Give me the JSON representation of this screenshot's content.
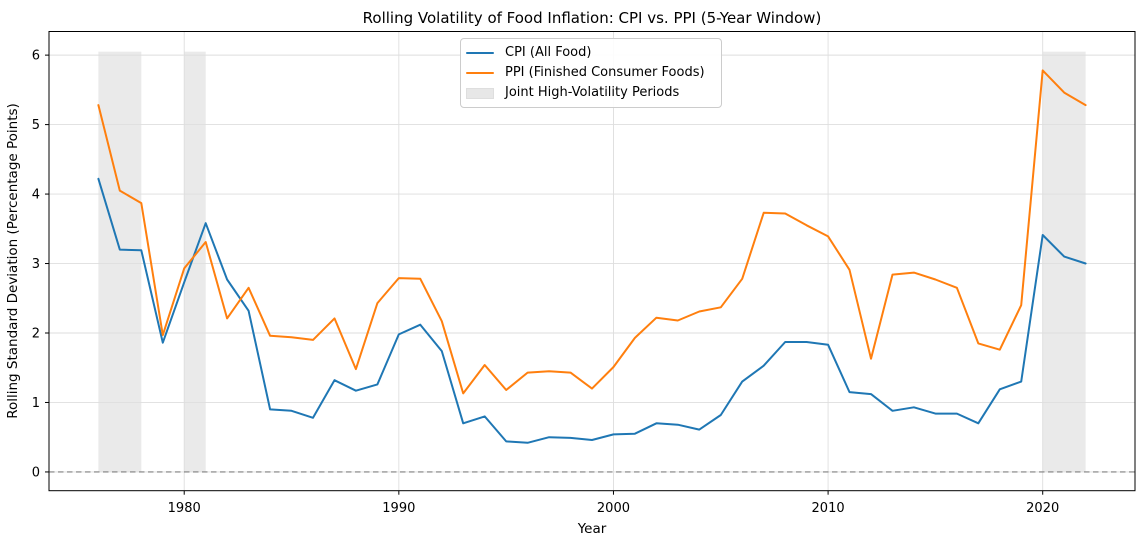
{
  "figure": {
    "title": "Rolling Volatility of Food Inflation: CPI vs. PPI (5-Year Window)",
    "xlabel": "Year",
    "ylabel": "Rolling Standard Deviation (Percentage Points)"
  },
  "legend": {
    "position": "upper center-left",
    "items": [
      {
        "label": "CPI (All Food)",
        "type": "line",
        "color": "#1f77b4"
      },
      {
        "label": "PPI (Finished Consumer Foods)",
        "type": "line",
        "color": "#ff7f0e"
      },
      {
        "label": "Joint High-Volatility Periods",
        "type": "patch",
        "color": "#e0e0e0"
      }
    ]
  },
  "chart_data": {
    "type": "line",
    "title": "Rolling Volatility of Food Inflation: CPI vs. PPI (5-Year Window)",
    "xlabel": "Year",
    "ylabel": "Rolling Standard Deviation (Percentage Points)",
    "grid": true,
    "xlim": [
      1973.7,
      2024.3
    ],
    "ylim": [
      -0.27,
      6.34
    ],
    "xticks": [
      1980,
      1990,
      2000,
      2010,
      2020
    ],
    "yticks": [
      0,
      1,
      2,
      3,
      4,
      5,
      6
    ],
    "x": [
      1976,
      1977,
      1978,
      1979,
      1980,
      1981,
      1982,
      1983,
      1984,
      1985,
      1986,
      1987,
      1988,
      1989,
      1990,
      1991,
      1992,
      1993,
      1994,
      1995,
      1996,
      1997,
      1998,
      1999,
      2000,
      2001,
      2002,
      2003,
      2004,
      2005,
      2006,
      2007,
      2008,
      2009,
      2010,
      2011,
      2012,
      2013,
      2014,
      2015,
      2016,
      2017,
      2018,
      2019,
      2020,
      2021,
      2022
    ],
    "series": [
      {
        "name": "CPI (All Food)",
        "color": "#1f77b4",
        "values": [
          4.22,
          3.2,
          3.19,
          1.86,
          2.73,
          3.58,
          2.77,
          2.32,
          0.9,
          0.88,
          0.78,
          1.32,
          1.17,
          1.26,
          1.98,
          2.12,
          1.74,
          0.7,
          0.8,
          0.44,
          0.42,
          0.5,
          0.49,
          0.46,
          0.54,
          0.55,
          0.7,
          0.68,
          0.61,
          0.82,
          1.3,
          1.53,
          1.87,
          1.87,
          1.83,
          1.15,
          1.12,
          0.88,
          0.93,
          0.84,
          0.84,
          0.7,
          1.19,
          1.3,
          3.41,
          3.1,
          3.0
        ]
      },
      {
        "name": "PPI (Finished Consumer Foods)",
        "color": "#ff7f0e",
        "values": [
          5.28,
          4.05,
          3.87,
          1.97,
          2.93,
          3.31,
          2.21,
          2.65,
          1.96,
          1.94,
          1.9,
          2.21,
          1.48,
          2.43,
          2.79,
          2.78,
          2.17,
          1.13,
          1.54,
          1.18,
          1.43,
          1.45,
          1.43,
          1.2,
          1.51,
          1.93,
          2.22,
          2.18,
          2.31,
          2.37,
          2.78,
          3.73,
          3.72,
          3.55,
          3.39,
          2.91,
          1.63,
          2.84,
          2.87,
          2.77,
          2.65,
          1.85,
          1.76,
          2.4,
          5.78,
          5.46,
          5.28
        ]
      }
    ],
    "shaded_periods": {
      "label": "Joint High-Volatility Periods",
      "color": "#dcdcdc",
      "opacity": 0.6,
      "y_bottom": 0,
      "y_top": 6.05,
      "ranges": [
        [
          1976,
          1978
        ],
        [
          1980,
          1981
        ],
        [
          2020,
          2022
        ]
      ]
    },
    "zero_line": {
      "y": 0,
      "style": "dashed",
      "color": "#7f7f7f"
    },
    "style": {
      "grid_color": "#dedede",
      "spine_color": "#000000",
      "text_color": "#000000",
      "line_width": 2
    }
  }
}
